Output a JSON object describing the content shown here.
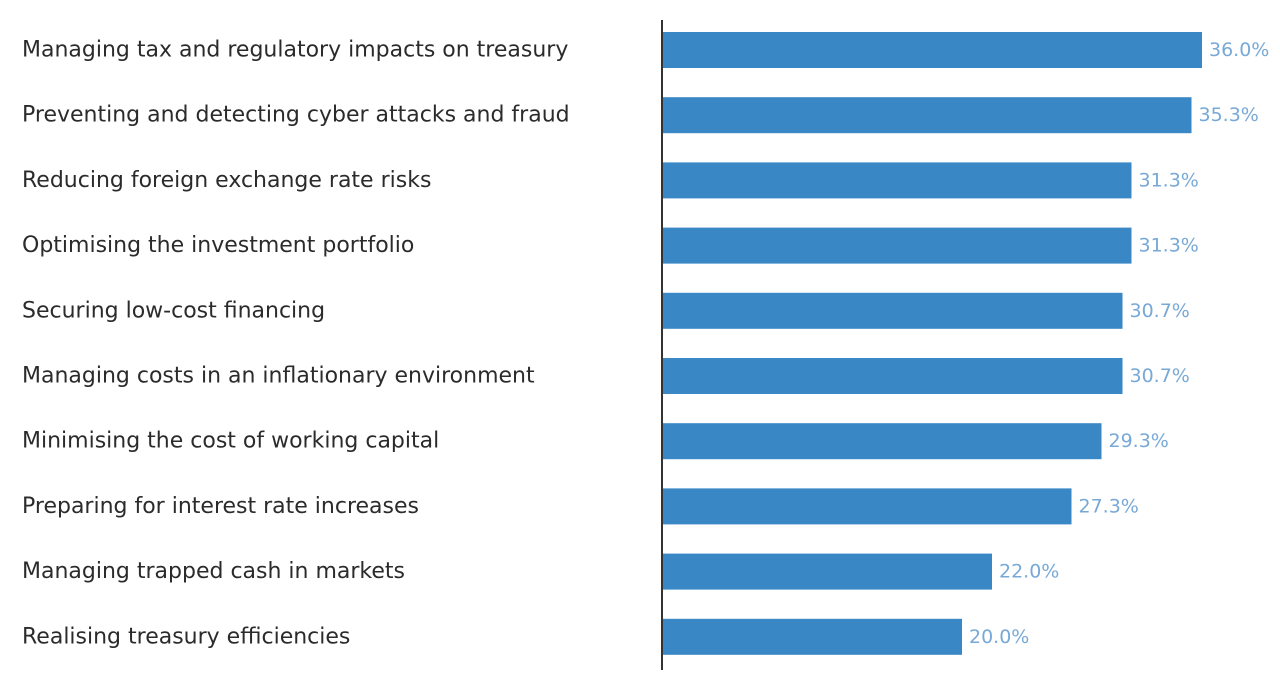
{
  "chart_data": {
    "type": "bar",
    "orientation": "horizontal",
    "categories": [
      "Managing tax and regulatory impacts on treasury",
      "Preventing and detecting cyber attacks and fraud",
      "Reducing foreign exchange rate risks",
      "Optimising the investment portfolio",
      "Securing low-cost financing",
      "Managing costs in an inflationary environment",
      "Minimising the cost of working capital",
      "Preparing for interest rate increases",
      "Managing trapped cash in markets",
      "Realising treasury efficiencies"
    ],
    "values": [
      36.0,
      35.3,
      31.3,
      31.3,
      30.7,
      30.7,
      29.3,
      27.3,
      22.0,
      20.0
    ],
    "value_labels": [
      "36.0%",
      "35.3%",
      "31.3%",
      "31.3%",
      "30.7%",
      "30.7%",
      "29.3%",
      "27.3%",
      "22.0%",
      "20.0%"
    ],
    "title": "",
    "xlabel": "",
    "ylabel": "",
    "xlim": [
      0,
      36
    ],
    "grid": false,
    "legend": "none",
    "colors": {
      "bar": "#3a87c6",
      "value_label": "#78a9d6",
      "axis": "#333333",
      "category_label": "#2b2b2b"
    }
  }
}
